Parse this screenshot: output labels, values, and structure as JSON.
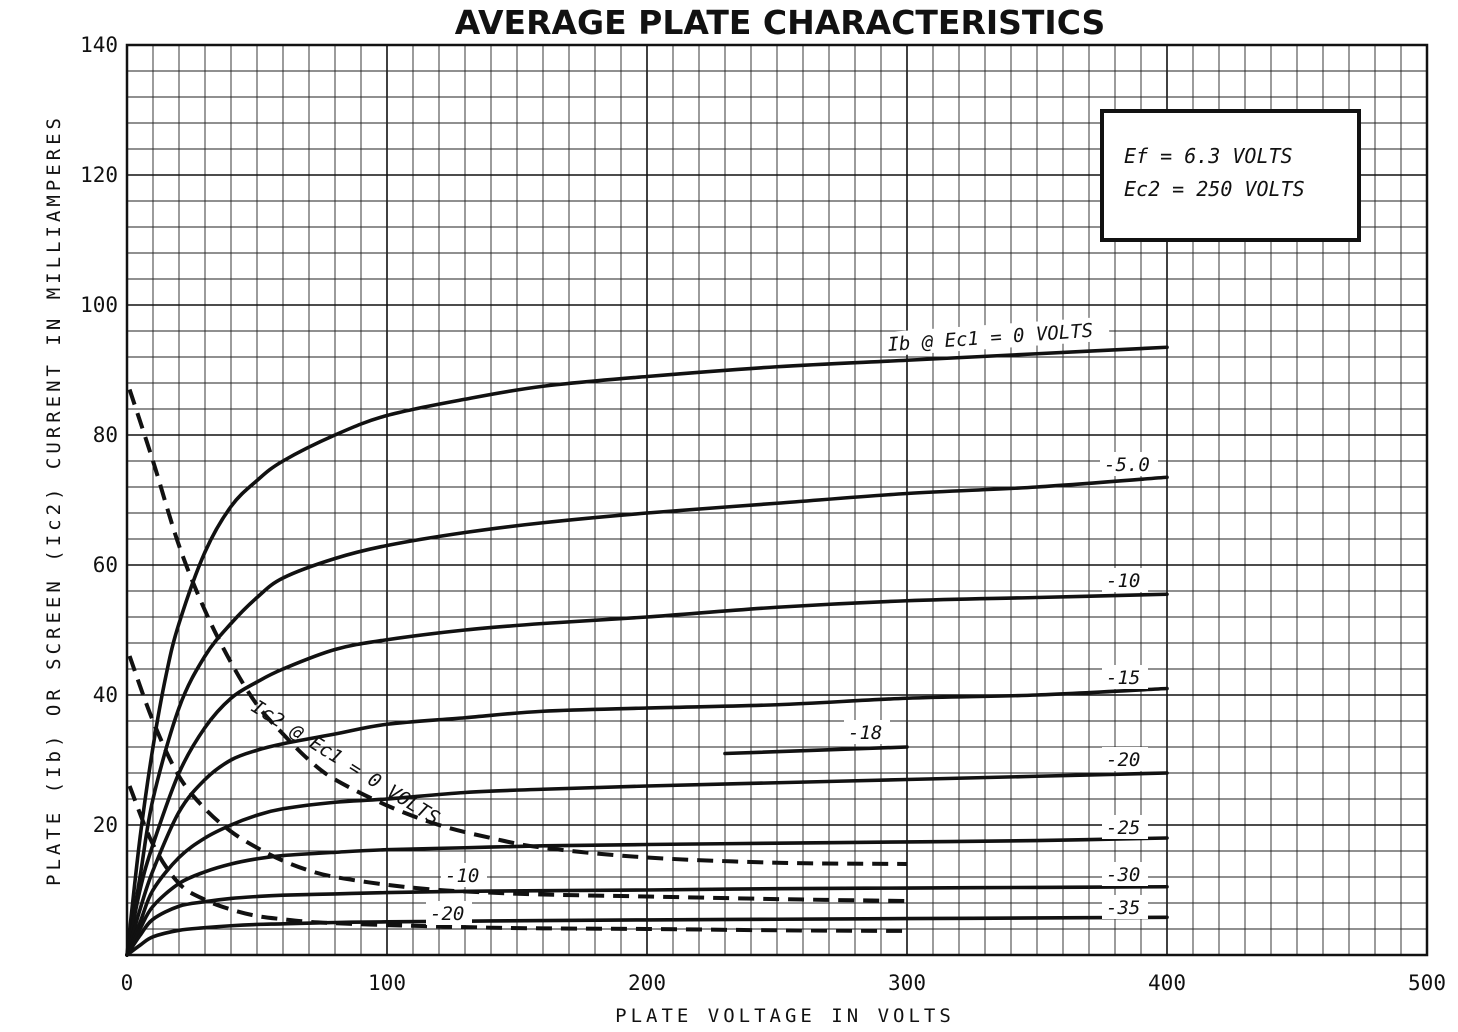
{
  "chart_data": {
    "type": "line",
    "title": "AVERAGE PLATE CHARACTERISTICS",
    "xlabel": "PLATE VOLTAGE IN VOLTS",
    "ylabel": "PLATE (Ib) OR SCREEN (Ic2) CURRENT IN MILLIAMPERES",
    "xlim": [
      0,
      500
    ],
    "ylim": [
      0,
      140
    ],
    "x_ticks": [
      "0",
      "100",
      "200",
      "300",
      "400",
      "500"
    ],
    "y_ticks": [
      "20",
      "40",
      "60",
      "80",
      "100",
      "120",
      "140"
    ],
    "grid": true,
    "legend": {
      "position": "top-right",
      "line1": "Ef = 6.3 VOLTS",
      "line2": "Ec2 = 250 VOLTS"
    },
    "plate_series": [
      {
        "label": "Ib @ Ec1 = 0 VOLTS",
        "x": [
          0,
          5,
          10,
          15,
          20,
          30,
          40,
          50,
          60,
          80,
          100,
          130,
          160,
          200,
          250,
          300,
          350,
          400
        ],
        "y": [
          0,
          18,
          32,
          43,
          51,
          62,
          69,
          73,
          76,
          80,
          83,
          85.5,
          87.5,
          89,
          90.5,
          91.5,
          92.5,
          93.5
        ]
      },
      {
        "label": "-5.0",
        "x": [
          0,
          5,
          10,
          20,
          30,
          40,
          50,
          60,
          80,
          100,
          130,
          160,
          200,
          250,
          300,
          350,
          400
        ],
        "y": [
          0,
          12,
          24,
          38,
          46,
          51,
          55,
          58,
          61,
          63,
          65,
          66.5,
          68,
          69.5,
          71,
          72,
          73.5
        ]
      },
      {
        "label": "-10",
        "x": [
          0,
          5,
          10,
          20,
          30,
          40,
          50,
          60,
          80,
          100,
          130,
          160,
          200,
          250,
          300,
          350,
          400
        ],
        "y": [
          0,
          10,
          17,
          28,
          35,
          39.5,
          42,
          44,
          47,
          48.5,
          50,
          51,
          52,
          53.5,
          54.5,
          55,
          55.5
        ]
      },
      {
        "label": "-15",
        "x": [
          0,
          5,
          10,
          20,
          30,
          40,
          50,
          60,
          80,
          100,
          130,
          160,
          200,
          250,
          300,
          350,
          400
        ],
        "y": [
          0,
          7,
          13,
          22,
          27,
          30,
          31.5,
          32.5,
          34,
          35.5,
          36.5,
          37.5,
          38,
          38.5,
          39.5,
          40,
          41
        ]
      },
      {
        "label": "-18",
        "x": [
          230,
          300
        ],
        "y": [
          31,
          32
        ]
      },
      {
        "label": "-20",
        "x": [
          0,
          5,
          10,
          20,
          30,
          40,
          50,
          60,
          80,
          100,
          130,
          160,
          200,
          250,
          300,
          350,
          400
        ],
        "y": [
          0,
          5,
          10,
          15,
          18,
          20,
          21.5,
          22.5,
          23.5,
          24,
          25,
          25.5,
          26,
          26.5,
          27,
          27.5,
          28
        ]
      },
      {
        "label": "-25",
        "x": [
          0,
          5,
          10,
          20,
          30,
          40,
          50,
          60,
          80,
          100,
          130,
          160,
          200,
          250,
          300,
          350,
          400
        ],
        "y": [
          0,
          4,
          7.5,
          11,
          12.8,
          14,
          14.8,
          15.3,
          15.8,
          16.2,
          16.5,
          16.8,
          17,
          17.2,
          17.4,
          17.6,
          18
        ]
      },
      {
        "label": "-30",
        "x": [
          0,
          5,
          10,
          20,
          30,
          40,
          50,
          60,
          80,
          100,
          130,
          160,
          200,
          250,
          300,
          350,
          400
        ],
        "y": [
          0,
          3,
          5.5,
          7.5,
          8.2,
          8.7,
          9,
          9.2,
          9.4,
          9.6,
          9.8,
          9.9,
          10,
          10.2,
          10.3,
          10.4,
          10.5
        ]
      },
      {
        "label": "-35",
        "x": [
          0,
          5,
          10,
          20,
          30,
          40,
          50,
          60,
          80,
          100,
          130,
          160,
          200,
          250,
          300,
          350,
          400
        ],
        "y": [
          0,
          1.5,
          2.8,
          3.8,
          4.2,
          4.5,
          4.7,
          4.8,
          5,
          5.1,
          5.2,
          5.3,
          5.4,
          5.5,
          5.6,
          5.7,
          5.8
        ]
      }
    ],
    "screen_series": [
      {
        "label": "Ic2 @ Ec1 = 0 VOLTS",
        "x": [
          1,
          10,
          20,
          30,
          40,
          50,
          60,
          70,
          80,
          100,
          120,
          140,
          160,
          200,
          250,
          300
        ],
        "y": [
          87,
          76,
          63,
          53,
          45,
          38.5,
          34,
          30,
          27,
          23,
          20,
          18,
          16.5,
          15,
          14.2,
          14
        ]
      },
      {
        "label": "-10",
        "x": [
          1,
          10,
          20,
          30,
          40,
          50,
          60,
          70,
          80,
          100,
          120,
          140,
          160,
          200,
          250,
          300
        ],
        "y": [
          46,
          36,
          27.5,
          22.5,
          19,
          16.5,
          14.5,
          13,
          12,
          10.8,
          10,
          9.6,
          9.3,
          9,
          8.6,
          8.3
        ]
      },
      {
        "label": "-20",
        "x": [
          1,
          10,
          20,
          30,
          40,
          50,
          60,
          70,
          80,
          100,
          120,
          140,
          160,
          200,
          250,
          300
        ],
        "y": [
          26,
          17,
          11,
          8.5,
          7,
          6,
          5.5,
          5.1,
          4.9,
          4.6,
          4.4,
          4.2,
          4.1,
          4,
          3.8,
          3.7
        ]
      }
    ]
  }
}
